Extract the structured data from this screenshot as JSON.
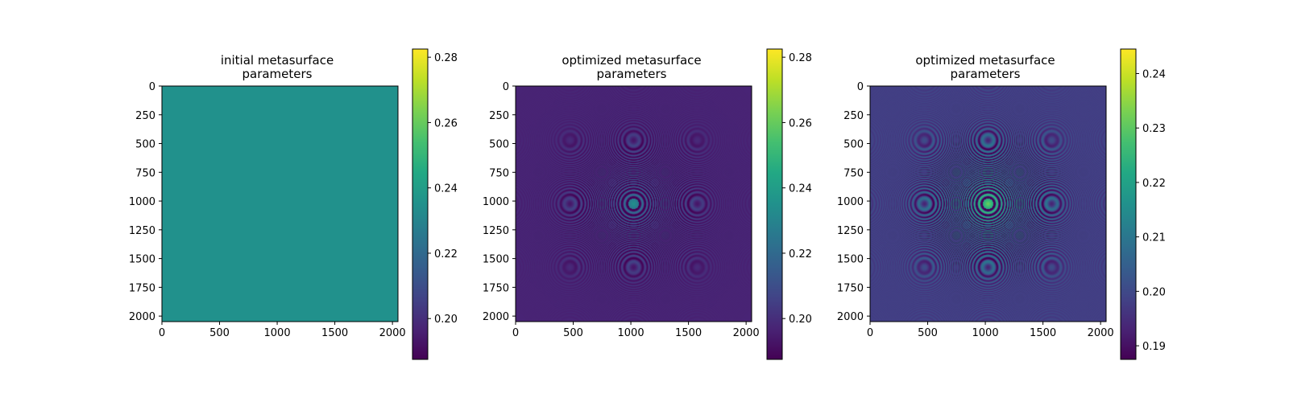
{
  "chart_data": [
    {
      "type": "heatmap",
      "title_line1": "initial metasurface",
      "title_line2": "parameters",
      "xlim": [
        0,
        2048
      ],
      "ylim": [
        2048,
        0
      ],
      "xticks": [
        0,
        500,
        1000,
        1500,
        2000
      ],
      "yticks": [
        0,
        250,
        500,
        750,
        1000,
        1250,
        1500,
        1750,
        2000
      ],
      "colormap": "viridis",
      "colorbar_range": [
        0.1875,
        0.2825
      ],
      "colorbar_ticks": [
        "0.20",
        "0.22",
        "0.24",
        "0.26",
        "0.28"
      ],
      "colorbar_tick_values": [
        0.2,
        0.22,
        0.24,
        0.26,
        0.28
      ],
      "field": {
        "kind": "uniform",
        "base": 0.235,
        "center": [
          1024,
          1024
        ]
      }
    },
    {
      "type": "heatmap",
      "title_line1": "optimized metasurface",
      "title_line2": "parameters",
      "xlim": [
        0,
        2048
      ],
      "ylim": [
        2048,
        0
      ],
      "xticks": [
        0,
        500,
        1000,
        1500,
        2000
      ],
      "yticks": [
        0,
        250,
        500,
        750,
        1000,
        1250,
        1500,
        1750,
        2000
      ],
      "colormap": "viridis",
      "colorbar_range": [
        0.1875,
        0.2825
      ],
      "colorbar_ticks": [
        "0.20",
        "0.22",
        "0.24",
        "0.26",
        "0.28"
      ],
      "colorbar_tick_values": [
        0.2,
        0.22,
        0.24,
        0.26,
        0.28
      ],
      "field": {
        "kind": "zone_plate",
        "base": 0.197,
        "center": [
          1024,
          1024
        ],
        "ring_amplitude": 0.03,
        "spot_value": 0.235,
        "ring_extent": 650
      }
    },
    {
      "type": "heatmap",
      "title_line1": "optimized metasurface",
      "title_line2": "parameters",
      "xlim": [
        0,
        2048
      ],
      "ylim": [
        2048,
        0
      ],
      "xticks": [
        0,
        500,
        1000,
        1500,
        2000
      ],
      "yticks": [
        0,
        250,
        500,
        750,
        1000,
        1250,
        1500,
        1750,
        2000
      ],
      "colormap": "viridis",
      "colorbar_range": [
        0.1875,
        0.2445
      ],
      "colorbar_ticks": [
        "0.19",
        "0.20",
        "0.21",
        "0.22",
        "0.23",
        "0.24"
      ],
      "colorbar_tick_values": [
        0.19,
        0.2,
        0.21,
        0.22,
        0.23,
        0.24
      ],
      "field": {
        "kind": "zone_plate",
        "base": 0.198,
        "center": [
          1024,
          1024
        ],
        "ring_amplitude": 0.034,
        "spot_value": 0.232,
        "ring_extent": 700
      }
    }
  ]
}
